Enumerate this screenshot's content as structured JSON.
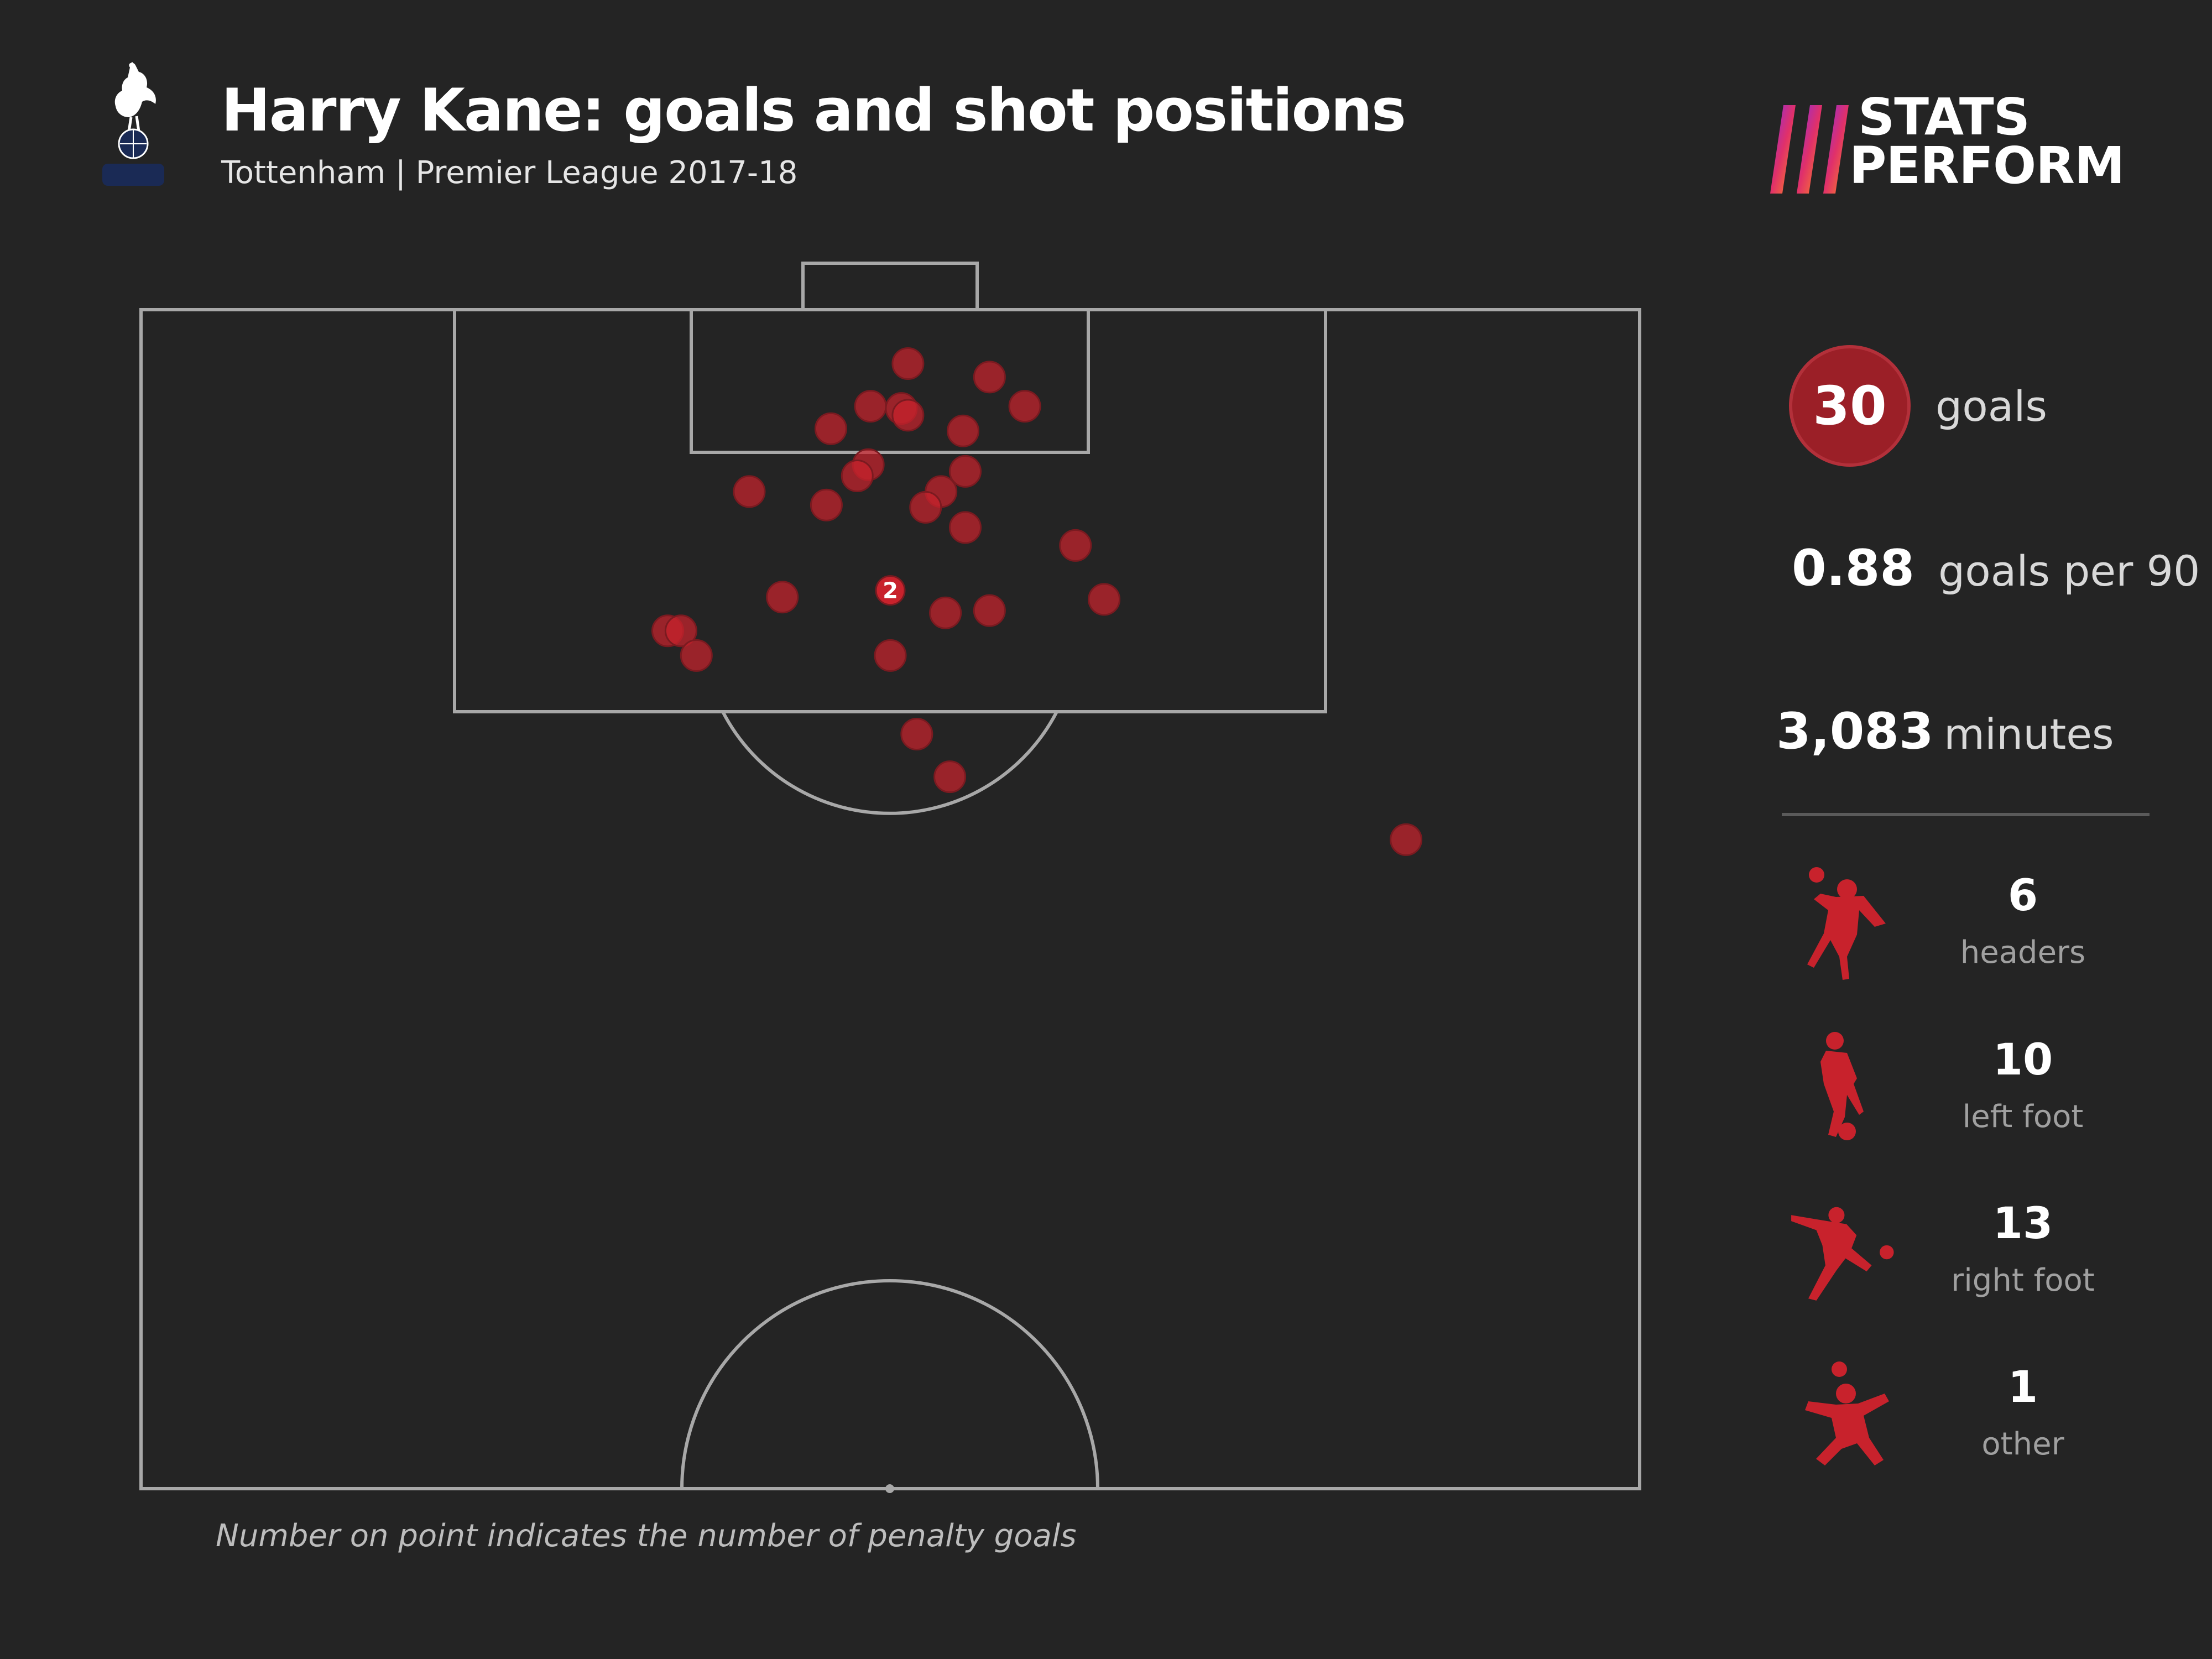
{
  "header": {
    "title": "Harry Kane: goals and shot positions",
    "subtitle": "Tottenham | Premier League 2017-18"
  },
  "brand": {
    "line1": "STATS",
    "line2": "PERFORM"
  },
  "stats": {
    "goals_value": "30",
    "goals_label": "goals",
    "goals_per_90_value": "0.88",
    "goals_per_90_label": "goals per 90",
    "minutes_value": "3,083",
    "minutes_label": "minutes"
  },
  "goal_types": [
    {
      "icon": "header-player-icon",
      "count": "6",
      "label": "headers"
    },
    {
      "icon": "left-foot-player-icon",
      "count": "10",
      "label": "left foot"
    },
    {
      "icon": "right-foot-player-icon",
      "count": "13",
      "label": "right foot"
    },
    {
      "icon": "other-player-icon",
      "count": "1",
      "label": "other"
    }
  ],
  "footnote": "Number on point indicates the number of penalty goals",
  "colors": {
    "background": "#242424",
    "shot_dot": "#c8222c",
    "accent_dark_red": "#9b1f27",
    "pitch_lines": "#a8a8a8",
    "text_primary": "#ffffff",
    "text_secondary": "#a0a0a0"
  },
  "chart_data": {
    "type": "scatter",
    "description_units": "x: metres across pitch width from left touchline (0-68); y: metres from goal line (0-52.5, half pitch)",
    "xlim": [
      0,
      68
    ],
    "ylim": [
      0,
      52.5
    ],
    "points": [
      {
        "x": 34.8,
        "y": 2.4
      },
      {
        "x": 38.5,
        "y": 3.0
      },
      {
        "x": 33.1,
        "y": 4.3
      },
      {
        "x": 34.5,
        "y": 4.4
      },
      {
        "x": 34.8,
        "y": 4.7
      },
      {
        "x": 31.3,
        "y": 5.3
      },
      {
        "x": 37.3,
        "y": 5.4
      },
      {
        "x": 40.1,
        "y": 4.3
      },
      {
        "x": 33.0,
        "y": 6.9
      },
      {
        "x": 32.5,
        "y": 7.4
      },
      {
        "x": 37.4,
        "y": 7.2
      },
      {
        "x": 36.3,
        "y": 8.1
      },
      {
        "x": 27.6,
        "y": 8.1
      },
      {
        "x": 31.1,
        "y": 8.7
      },
      {
        "x": 35.6,
        "y": 8.8
      },
      {
        "x": 37.4,
        "y": 9.7
      },
      {
        "x": 42.4,
        "y": 10.5
      },
      {
        "x": 29.1,
        "y": 12.8
      },
      {
        "x": 34.0,
        "y": 12.5,
        "penalties": "2"
      },
      {
        "x": 36.5,
        "y": 13.5
      },
      {
        "x": 38.5,
        "y": 13.4
      },
      {
        "x": 43.7,
        "y": 12.9
      },
      {
        "x": 23.9,
        "y": 14.3
      },
      {
        "x": 24.5,
        "y": 14.3
      },
      {
        "x": 25.2,
        "y": 15.4
      },
      {
        "x": 34.0,
        "y": 15.4
      },
      {
        "x": 35.2,
        "y": 18.9
      },
      {
        "x": 36.7,
        "y": 20.8
      },
      {
        "x": 57.4,
        "y": 23.6
      }
    ]
  }
}
